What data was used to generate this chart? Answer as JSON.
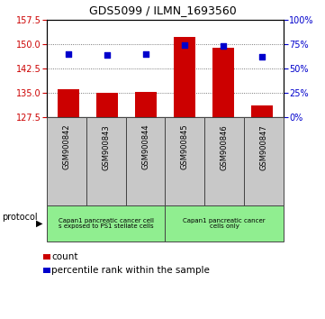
{
  "title": "GDS5099 / ILMN_1693560",
  "samples": [
    "GSM900842",
    "GSM900843",
    "GSM900844",
    "GSM900845",
    "GSM900846",
    "GSM900847"
  ],
  "counts": [
    136.2,
    135.1,
    135.2,
    152.3,
    148.8,
    131.0
  ],
  "percentiles": [
    64.5,
    63.5,
    64.5,
    74.5,
    73.0,
    62.0
  ],
  "ylim_left": [
    127.5,
    157.5
  ],
  "ylim_right": [
    0,
    100
  ],
  "yticks_left": [
    127.5,
    135.0,
    142.5,
    150.0,
    157.5
  ],
  "yticks_right": [
    0,
    25,
    50,
    75,
    100
  ],
  "bar_color": "#CC0000",
  "dot_color": "#0000CC",
  "group1_label": "Capan1 pancreatic cancer cell\ns exposed to PS1 stellate cells",
  "group2_label": "Capan1 pancreatic cancer\ncells only",
  "group1_n": 3,
  "group2_n": 3,
  "protocol_label": "protocol",
  "legend_count": "count",
  "legend_percentile": "percentile rank within the sample",
  "bar_color_hex": "#CC0000",
  "dot_color_hex": "#0000CC",
  "grid_color": "#555555",
  "left_tick_color": "#CC0000",
  "right_tick_color": "#0000CC",
  "sample_box_color": "#C8C8C8",
  "proto_box_color": "#90EE90"
}
